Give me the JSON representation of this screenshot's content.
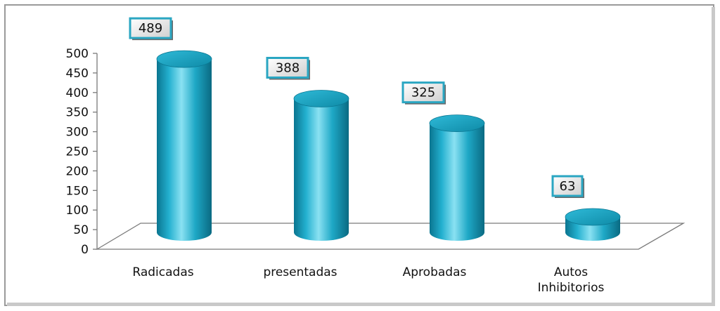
{
  "chart_data": {
    "type": "bar",
    "title": "",
    "xlabel": "",
    "ylabel": "",
    "categories": [
      "Radicadas",
      "presentadas",
      "Aprobadas",
      "Autos Inhibitorios"
    ],
    "values": [
      489,
      388,
      325,
      63
    ],
    "ylim": [
      0,
      500
    ],
    "yticks": [
      0,
      50,
      100,
      150,
      200,
      250,
      300,
      350,
      400,
      450,
      500
    ],
    "grid": false,
    "legend": "none",
    "bar_style": "3d-cylinder",
    "colors": {
      "bar_light": "#7fdcef",
      "bar_mid": "#1ea8c6",
      "bar_dark": "#0a6f87",
      "label_border": "#2aa6c2",
      "frame": "#9a9a9a"
    }
  }
}
